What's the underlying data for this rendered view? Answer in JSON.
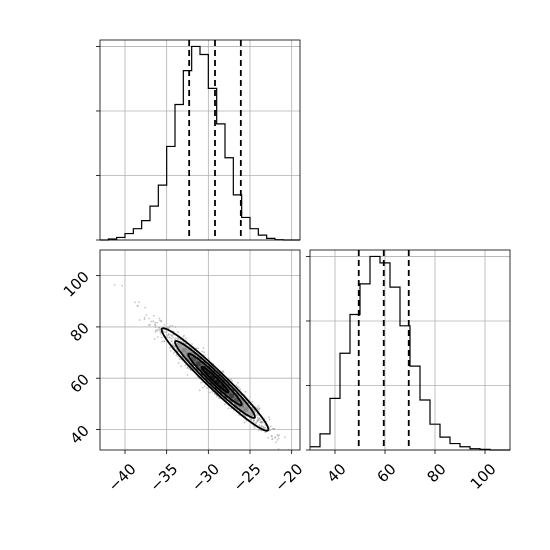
{
  "chart_data": [
    {
      "panel": "marginal-param-1",
      "type": "bar",
      "title": "",
      "xlabel": "",
      "ylabel": "",
      "xlim": [
        -43,
        -19
      ],
      "ylim": [
        0,
        620
      ],
      "grid": true,
      "bin_edges": [
        -43,
        -42,
        -41,
        -40,
        -39,
        -38,
        -37,
        -36,
        -35,
        -34,
        -33,
        -32,
        -31,
        -30,
        -29,
        -28,
        -27,
        -26,
        -25,
        -24,
        -23,
        -22,
        -21,
        -20,
        -19
      ],
      "counts": [
        0,
        3,
        8,
        20,
        35,
        60,
        105,
        170,
        290,
        420,
        525,
        600,
        575,
        470,
        360,
        255,
        140,
        70,
        35,
        15,
        5,
        1,
        0,
        0
      ],
      "quantile_lines": [
        -32.3,
        -29.2,
        -26.1
      ]
    },
    {
      "panel": "joint-param-1-vs-param-2",
      "type": "scatter",
      "title": "",
      "xlabel": "",
      "ylabel": "",
      "xlim": [
        -43,
        -19
      ],
      "ylim": [
        32,
        110
      ],
      "grid": true,
      "x_ticks": [
        "−40",
        "−35",
        "−30",
        "−25",
        "−20"
      ],
      "x_tick_values": [
        -40,
        -35,
        -30,
        -25,
        -20
      ],
      "y_ticks": [
        "40",
        "60",
        "80",
        "100"
      ],
      "y_tick_values": [
        40,
        60,
        80,
        100
      ],
      "correlation": -0.97,
      "mean": [
        -29.2,
        59.5
      ],
      "std": [
        3.2,
        10.0
      ],
      "density_peak": [
        -28.8,
        59.0
      ],
      "contour_levels_sigma": [
        0.5,
        1.0,
        1.5,
        2.0
      ]
    },
    {
      "panel": "marginal-param-2",
      "type": "bar",
      "title": "",
      "xlabel": "",
      "ylabel": "",
      "xlim": [
        30,
        110
      ],
      "ylim": [
        0,
        620
      ],
      "grid": true,
      "x_ticks": [
        "40",
        "60",
        "80",
        "100"
      ],
      "x_tick_values": [
        40,
        60,
        80,
        100
      ],
      "bin_edges": [
        30,
        34,
        38,
        42,
        46,
        50,
        54,
        58,
        62,
        66,
        70,
        74,
        78,
        82,
        86,
        90,
        94,
        98,
        102,
        106,
        110
      ],
      "counts": [
        10,
        50,
        160,
        300,
        420,
        515,
        600,
        580,
        505,
        385,
        260,
        155,
        80,
        40,
        20,
        10,
        4,
        2,
        0,
        0
      ],
      "quantile_lines": [
        49.5,
        59.5,
        69.5
      ]
    }
  ]
}
